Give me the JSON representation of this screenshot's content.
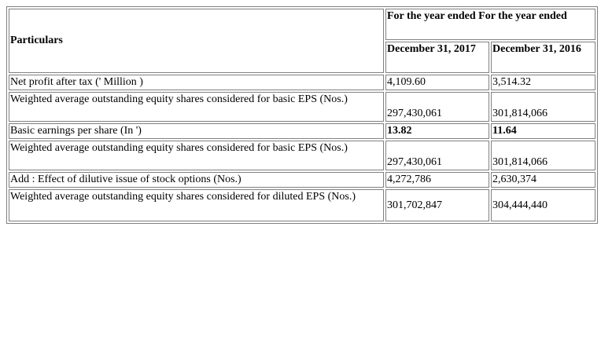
{
  "table": {
    "header": {
      "particulars": "Particulars",
      "period_label": "For the year ended  For the year ended",
      "col_2017": "December 31, 2017",
      "col_2016": "December 31, 2016"
    },
    "rows": [
      {
        "label": "Net profit after tax (' Million )",
        "v2017": "4,109.60",
        "v2016": "3,514.32"
      },
      {
        "label": "Weighted average outstanding equity shares considered for basic EPS (Nos.)",
        "v2017": "297,430,061",
        "v2016": "301,814,066"
      },
      {
        "label": "Basic earnings per share (In ')",
        "v2017": "13.82",
        "v2016": "11.64"
      },
      {
        "label": "Weighted average outstanding equity shares considered for basic EPS (Nos.)",
        "v2017": "297,430,061",
        "v2016": "301,814,066"
      },
      {
        "label": "Add : Effect of dilutive issue of stock options (Nos.)",
        "v2017": "4,272,786",
        "v2016": "2,630,374"
      },
      {
        "label": "Weighted average outstanding equity shares considered for diluted EPS (Nos.)",
        "v2017": "301,702,847",
        "v2016": "304,444,440"
      }
    ]
  }
}
